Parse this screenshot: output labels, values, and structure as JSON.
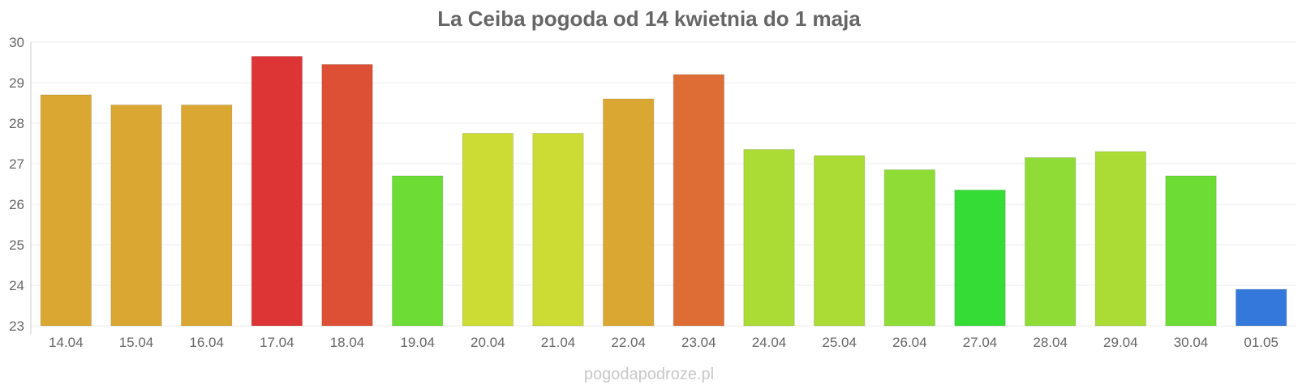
{
  "chart_data": {
    "type": "bar",
    "title": "La Ceiba pogoda od 14 kwietnia do 1 maja",
    "xlabel": "",
    "ylabel": "",
    "ylim": [
      23,
      30
    ],
    "yticks": [
      "23",
      "24",
      "25",
      "26",
      "27",
      "28",
      "29",
      "30"
    ],
    "grid": true,
    "legend": "none",
    "categories": [
      "14.04",
      "15.04",
      "16.04",
      "17.04",
      "18.04",
      "19.04",
      "20.04",
      "21.04",
      "22.04",
      "23.04",
      "24.04",
      "25.04",
      "26.04",
      "27.04",
      "28.04",
      "29.04",
      "30.04",
      "01.05"
    ],
    "values": [
      28.7,
      28.45,
      28.45,
      29.65,
      29.45,
      26.7,
      27.75,
      27.75,
      28.6,
      29.2,
      27.35,
      27.2,
      26.85,
      26.35,
      27.15,
      27.3,
      26.7,
      23.9
    ],
    "colors": [
      "#dba733",
      "#dba733",
      "#dba733",
      "#dd3535",
      "#dd5035",
      "#6ddc35",
      "#cddc35",
      "#cddc35",
      "#dba733",
      "#dd6d35",
      "#abdc35",
      "#abdc35",
      "#8edc35",
      "#35dc35",
      "#8edc35",
      "#abdc35",
      "#6ddc35",
      "#3578dc"
    ]
  },
  "watermark": "pogodapodroze.pl"
}
